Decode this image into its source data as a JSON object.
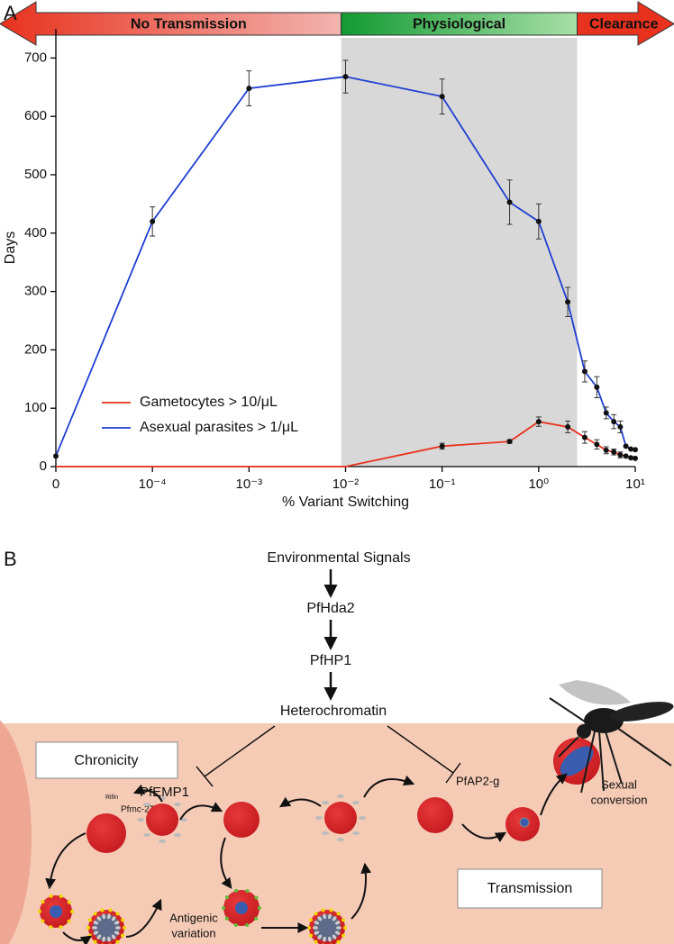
{
  "chart_data": {
    "type": "line",
    "zone_labels": [
      "No Transmission",
      "Physiological",
      "Clearance"
    ],
    "shaded_region": [
      0.009,
      2.5
    ],
    "x": [
      0,
      0.0001,
      0.001,
      0.01,
      0.1,
      0.5,
      1,
      2,
      3,
      4,
      5,
      6,
      7,
      8,
      9,
      10
    ],
    "series": [
      {
        "name": "Gametocytes > 10/μL",
        "color": "#e8321e",
        "values": [
          0,
          0,
          0,
          0,
          35,
          43,
          77,
          68,
          50,
          38,
          28,
          25,
          20,
          18,
          15,
          14
        ],
        "errors": [
          null,
          null,
          null,
          null,
          5,
          3,
          8,
          10,
          10,
          8,
          6,
          5,
          5,
          null,
          null,
          null
        ]
      },
      {
        "name": "Asexual parasites > 1/μL",
        "color": "#1f3fd1",
        "values": [
          18,
          420,
          648,
          668,
          634,
          453,
          420,
          282,
          163,
          136,
          92,
          77,
          68,
          35,
          30,
          29
        ],
        "errors": [
          null,
          25,
          30,
          28,
          30,
          38,
          30,
          25,
          18,
          18,
          10,
          12,
          10,
          null,
          null,
          null
        ]
      }
    ],
    "xlabel": "% Variant Switching",
    "ylabel": "Days",
    "xscale": "log",
    "xlim": [
      0,
      10
    ],
    "xticks": [
      {
        "value": 0,
        "label": "0"
      },
      {
        "value": 0.0001,
        "label": "10⁻⁴"
      },
      {
        "value": 0.001,
        "label": "10⁻³"
      },
      {
        "value": 0.01,
        "label": "10⁻²"
      },
      {
        "value": 0.1,
        "label": "10⁻¹"
      },
      {
        "value": 1,
        "label": "10⁰"
      },
      {
        "value": 10,
        "label": "10¹"
      }
    ],
    "ylim": [
      0,
      750
    ],
    "yticks": [
      0,
      100,
      200,
      300,
      400,
      500,
      600,
      700
    ],
    "legend": "lower left"
  },
  "panel_labels": [
    "A",
    "B"
  ],
  "pathway": [
    "Environmental Signals",
    "PfHda2",
    "PfHP1",
    "Heterochromatin"
  ],
  "labels": {
    "chronicity": "Chronicity",
    "pfemp1": "PfEMP1",
    "rifin": "Rifin",
    "pfmc": "Pfmc-2TM",
    "pfap2g": "PfAP2-g",
    "sexual": [
      "Sexual",
      "conversion"
    ],
    "antigenic": [
      "Antigenic",
      "variation"
    ],
    "transmission": "Transmission"
  }
}
